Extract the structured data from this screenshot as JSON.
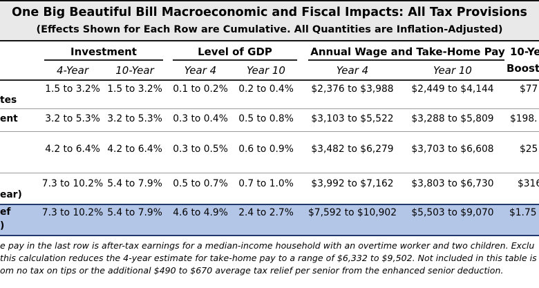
{
  "title": "One Big Beautiful Bill Macroeconomic and Fiscal Impacts: All Tax Provisions",
  "subtitle": "(Effects Shown for Each Row are Cumulative. All Quantities are Inflation-Adjusted)",
  "groups": {
    "investment": "Investment",
    "gdp": "Level of GDP",
    "wage": "Annual Wage and Take-Home Pay",
    "boost_line1": "10-Ye",
    "boost_line2": "Boost"
  },
  "subheads": {
    "inv4": "4-Year",
    "inv10": "10-Year",
    "gdp4": "Year 4",
    "gdp10": "Year 10",
    "wage4": "Year 4",
    "wage10": "Year 10"
  },
  "rows": [
    {
      "label": "tes",
      "inv4": "1.5 to 3.2%",
      "inv10": "1.5 to 3.2%",
      "gdp4": "0.1 to 0.2%",
      "gdp10": "0.2 to 0.4%",
      "wage4": "$2,376 to $3,988",
      "wage10": "$2,449 to $4,144",
      "boost": "$77"
    },
    {
      "label": "ent",
      "inv4": "3.2 to 5.3%",
      "inv10": "3.2 to 5.3%",
      "gdp4": "0.3 to 0.4%",
      "gdp10": "0.5 to 0.8%",
      "wage4": "$3,103 to $5,522",
      "wage10": "$3,288 to $5,809",
      "boost": "$198."
    },
    {
      "label": "",
      "inv4": "4.2 to 6.4%",
      "inv10": "4.2 to 6.4%",
      "gdp4": "0.3 to 0.5%",
      "gdp10": "0.6 to 0.9%",
      "wage4": "$3,482 to $6,279",
      "wage10": "$3,703 to $6,608",
      "boost": "$25"
    },
    {
      "label": "ear)",
      "inv4": "7.3 to 10.2%",
      "inv10": "5.4 to 7.9%",
      "gdp4": "0.5 to 0.7%",
      "gdp10": "0.7 to 1.0%",
      "wage4": "$3,992 to $7,162",
      "wage10": "$3,803 to $6,730",
      "boost": "$316"
    },
    {
      "label_line1": "ef",
      "label_line2": ")",
      "inv4": "7.3 to 10.2%",
      "inv10": "5.4 to 7.9%",
      "gdp4": "4.6 to 4.9%",
      "gdp10": "2.4 to 2.7%",
      "wage4": "$7,592 to $10,902",
      "wage10": "$5,503 to $9,070",
      "boost": "$1.75"
    }
  ],
  "footnotes": [
    "e pay in the last row is after-tax earnings for a median-income household with an overtime worker and two children. Exclu",
    "this calculation reduces the 4-year estimate for take-home pay to a range of $6,332 to $9,502. Not included in this table is",
    "om no tax on tips or the additional $490 to $670 average tax relief per senior from the enhanced senior deduction."
  ]
}
